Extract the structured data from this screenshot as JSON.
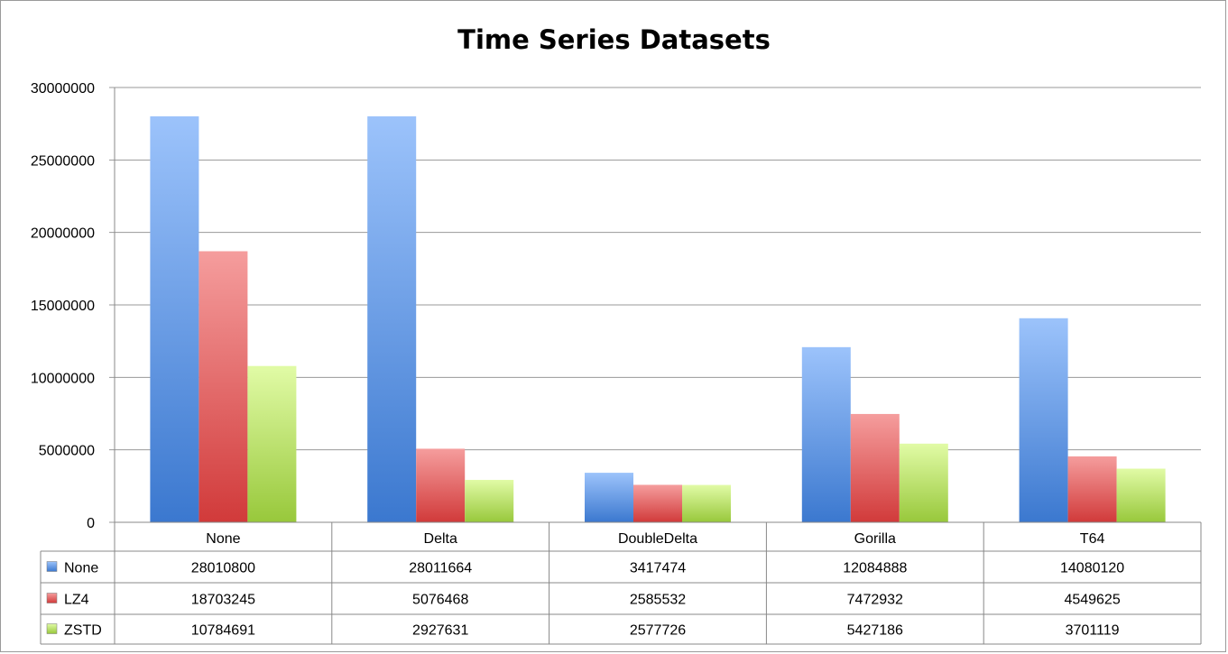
{
  "chart_data": {
    "type": "bar",
    "title": "Time Series Datasets",
    "categories": [
      "None",
      "Delta",
      "DoubleDelta",
      "Gorilla",
      "T64"
    ],
    "ylim": [
      0,
      30000000
    ],
    "yticks": [
      "0",
      "5000000",
      "10000000",
      "15000000",
      "20000000",
      "25000000",
      "30000000"
    ],
    "grid": true,
    "legend": "data-table-left",
    "series": [
      {
        "name": "None",
        "color": "#4a86d8",
        "values": [
          28010800,
          28011664,
          3417474,
          12084888,
          14080120
        ],
        "labels": [
          "28010800",
          "28011664",
          "3417474",
          "12084888",
          "14080120"
        ]
      },
      {
        "name": "LZ4",
        "color": "#d84848",
        "values": [
          18703245,
          5076468,
          2585532,
          7472932,
          4549625
        ],
        "labels": [
          "18703245",
          "5076468",
          "2585532",
          "7472932",
          "4549625"
        ]
      },
      {
        "name": "ZSTD",
        "color": "#a6cf46",
        "values": [
          10784691,
          2927631,
          2577726,
          5427186,
          3701119
        ],
        "labels": [
          "10784691",
          "2927631",
          "2577726",
          "5427186",
          "3701119"
        ]
      }
    ]
  }
}
